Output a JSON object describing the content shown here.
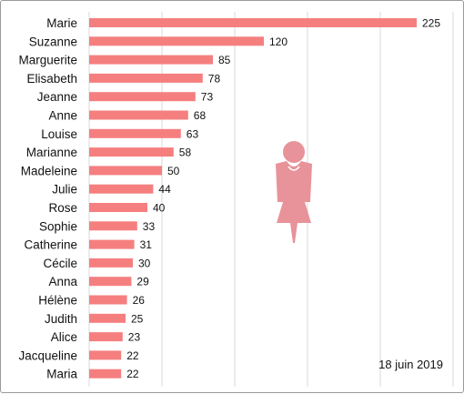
{
  "chart_data": {
    "type": "bar",
    "orientation": "horizontal",
    "categories": [
      "Marie",
      "Suzanne",
      "Marguerite",
      "Elisabeth",
      "Jeanne",
      "Anne",
      "Louise",
      "Marianne",
      "Madeleine",
      "Julie",
      "Rose",
      "Sophie",
      "Catherine",
      "Cécile",
      "Anna",
      "Hélène",
      "Judith",
      "Alice",
      "Jacqueline",
      "Maria"
    ],
    "values": [
      225,
      120,
      85,
      78,
      73,
      68,
      63,
      58,
      50,
      44,
      40,
      33,
      31,
      30,
      29,
      26,
      25,
      23,
      22,
      22
    ],
    "xlim": [
      0,
      250
    ],
    "grid": "vertical",
    "annotation": "18 juin 2019",
    "colors": {
      "bar": "#f57f7f",
      "icon": "#e8929a",
      "grid": "#d9d9d9"
    },
    "icon": "woman-icon"
  }
}
